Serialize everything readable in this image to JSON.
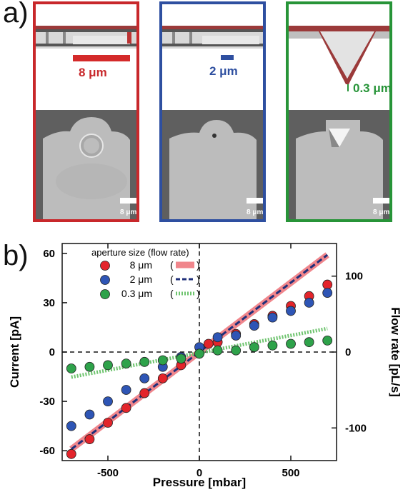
{
  "panel_a": {
    "label": "a)",
    "apertures": [
      {
        "size_label": "8 μm",
        "scale_label": "8 μm",
        "color": "#c8282b"
      },
      {
        "size_label": "2 μm",
        "scale_label": "8 μm",
        "color": "#2e4fa0"
      },
      {
        "size_label": "0.3 μm",
        "scale_label": "8 μm",
        "color": "#279438"
      }
    ]
  },
  "chart_data": {
    "panel_label": "b)",
    "type": "scatter",
    "xlabel": "Pressure [mbar]",
    "ylabel": "Current [pA]",
    "y2label": "Flow rate [pL/s]",
    "xlim": [
      -750,
      750
    ],
    "ylim": [
      -66,
      66
    ],
    "y2lim": [
      -143,
      143
    ],
    "xticks": [
      -500,
      0,
      500
    ],
    "yticks": [
      60,
      30,
      0,
      -30,
      -60
    ],
    "y2ticks": [
      100,
      0,
      -100
    ],
    "legend": {
      "title": "aperture size (flow rate)",
      "placement": "top-left",
      "entries": [
        {
          "label": "8 μm",
          "line_label": "(",
          "line_label_end": ")"
        },
        {
          "label": "2 μm",
          "line_label": "(",
          "line_label_end": ")"
        },
        {
          "label": "0.3 μm",
          "line_label": "(",
          "line_label_end": ")"
        }
      ]
    },
    "series": [
      {
        "name": "8 μm",
        "color": "#e3242b",
        "x": [
          -700,
          -600,
          -500,
          -400,
          -300,
          -200,
          -100,
          0,
          50,
          100,
          200,
          300,
          400,
          500,
          600,
          700
        ],
        "y": [
          -62,
          -53,
          -43,
          -34,
          -25,
          -16,
          -8,
          -1,
          5,
          6,
          11,
          17,
          22,
          28,
          34,
          41
        ]
      },
      {
        "name": "2 μm",
        "color": "#2e55b5",
        "x": [
          -700,
          -600,
          -500,
          -400,
          -300,
          -200,
          -100,
          0,
          100,
          200,
          300,
          400,
          500,
          600,
          700
        ],
        "y": [
          -45,
          -38,
          -30,
          -23,
          -16,
          -9,
          -3,
          3,
          9,
          10,
          16,
          21,
          25,
          30,
          36
        ]
      },
      {
        "name": "0.3 μm",
        "color": "#2ea24a",
        "x": [
          -700,
          -600,
          -500,
          -400,
          -300,
          -200,
          -100,
          0,
          100,
          200,
          300,
          400,
          500,
          600,
          700
        ],
        "y": [
          -10,
          -9,
          -8,
          -7,
          -6,
          -5,
          -4,
          -1,
          1,
          1,
          3,
          4,
          5,
          6,
          7
        ]
      }
    ],
    "flow_lines": [
      {
        "name": "8 μm",
        "color": "#f0868c",
        "style": "solid-thick",
        "x": [
          -700,
          700
        ],
        "y2": [
          -128,
          128
        ]
      },
      {
        "name": "2 μm",
        "color": "#1f2f7a",
        "style": "dashed",
        "x": [
          -700,
          700
        ],
        "y2": [
          -128,
          128
        ]
      },
      {
        "name": "0.3 μm",
        "color": "#6fc46f",
        "style": "dotted",
        "x": [
          -700,
          700
        ],
        "y2": [
          -33,
          31
        ]
      }
    ]
  }
}
